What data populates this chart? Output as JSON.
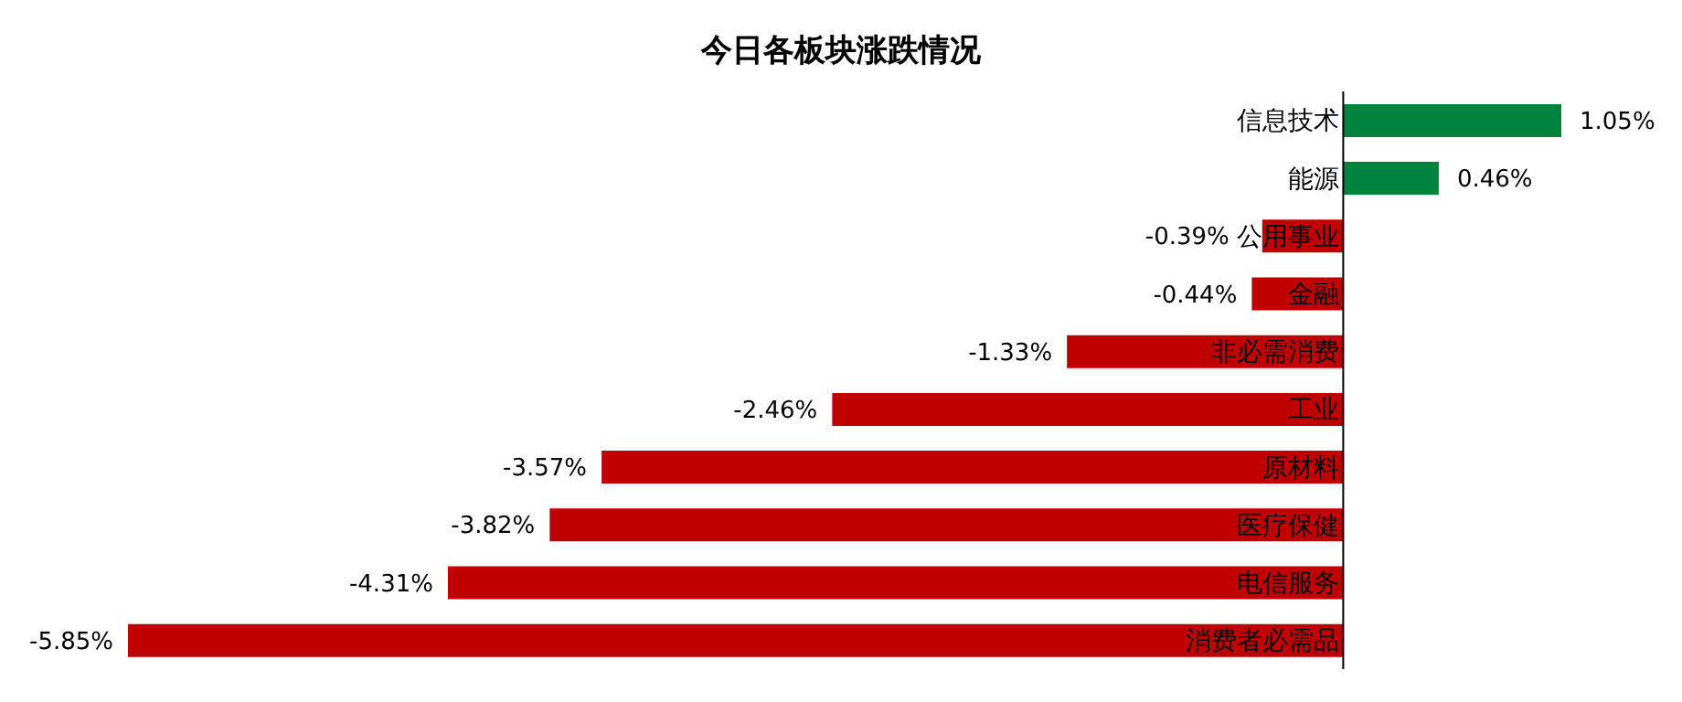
{
  "chart_data": {
    "type": "bar",
    "orientation": "horizontal",
    "title": "今日各板块涨跌情况",
    "categories": [
      "信息技术",
      "能源",
      "公用事业",
      "金融",
      "非必需消费",
      "工业",
      "原材料",
      "医疗保健",
      "电信服务",
      "消费者必需品"
    ],
    "values": [
      1.05,
      0.46,
      -0.39,
      -0.44,
      -1.33,
      -2.46,
      -3.57,
      -3.82,
      -4.31,
      -5.85
    ],
    "colors": [
      "#00843d",
      "#00843d",
      "#c00000",
      "#c00000",
      "#c00000",
      "#c00000",
      "#c00000",
      "#c00000",
      "#c00000",
      "#c00000"
    ],
    "value_labels": [
      "1.05%",
      "0.46%",
      "-0.39%",
      "-0.44%",
      "-1.33%",
      "-2.46%",
      "-3.57%",
      "-3.82%",
      "-4.31%",
      "-5.85%"
    ],
    "tick_labels": "y",
    "grid": false,
    "legend": false
  }
}
